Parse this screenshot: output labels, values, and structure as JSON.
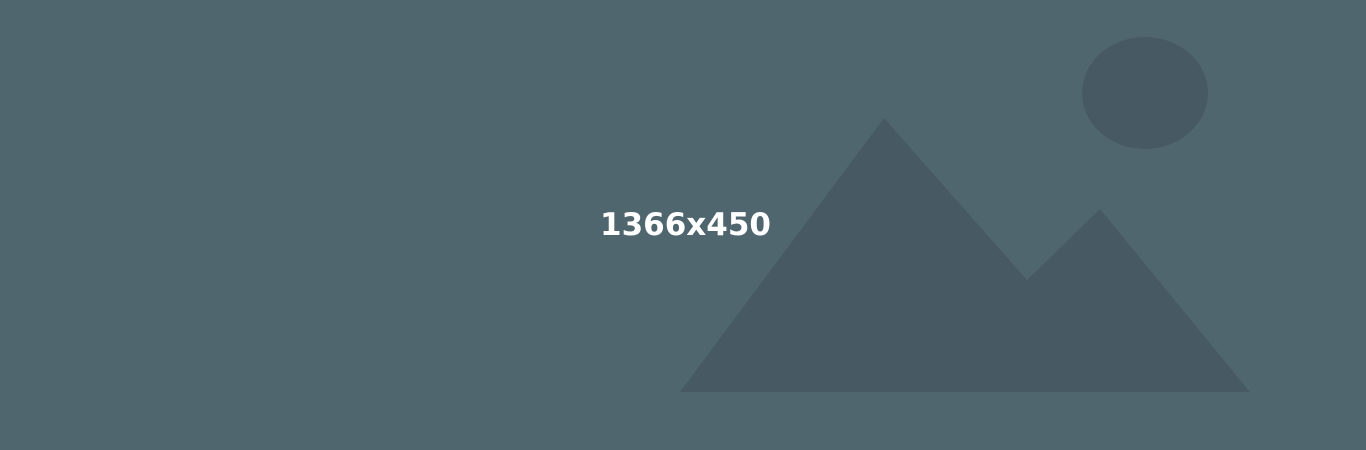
{
  "placeholder": {
    "dimensions_label": "1366x450",
    "icon": "mountain-sun-landscape-icon"
  },
  "colors": {
    "background": "#50666f",
    "shapes": "#475a64",
    "text": "#ffffff"
  }
}
